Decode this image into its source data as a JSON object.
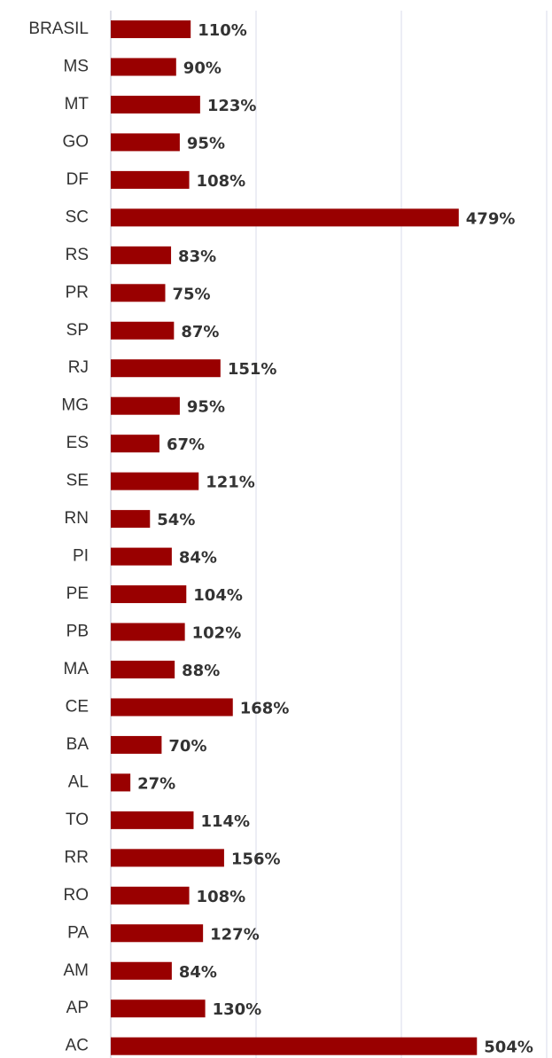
{
  "chart_data": {
    "type": "bar",
    "orientation": "horizontal",
    "categories": [
      "BRASIL",
      "MS",
      "MT",
      "GO",
      "DF",
      "SC",
      "RS",
      "PR",
      "SP",
      "RJ",
      "MG",
      "ES",
      "SE",
      "RN",
      "PI",
      "PE",
      "PB",
      "MA",
      "CE",
      "BA",
      "AL",
      "TO",
      "RR",
      "RO",
      "PA",
      "AM",
      "AP",
      "AC"
    ],
    "values": [
      110,
      90,
      123,
      95,
      108,
      479,
      83,
      75,
      87,
      151,
      95,
      67,
      121,
      54,
      84,
      104,
      102,
      88,
      168,
      70,
      27,
      114,
      156,
      108,
      127,
      84,
      130,
      504
    ],
    "value_labels": [
      "110%",
      "90%",
      "123%",
      "95%",
      "108%",
      "479%",
      "83%",
      "75%",
      "87%",
      "151%",
      "95%",
      "67%",
      "121%",
      "54%",
      "84%",
      "104%",
      "102%",
      "88%",
      "168%",
      "70%",
      "27%",
      "114%",
      "156%",
      "108%",
      "127%",
      "84%",
      "130%",
      "504%"
    ],
    "color": "#990000",
    "xlim": [
      0,
      600
    ],
    "xticks": [
      0,
      200,
      400,
      600
    ],
    "grid": true
  }
}
